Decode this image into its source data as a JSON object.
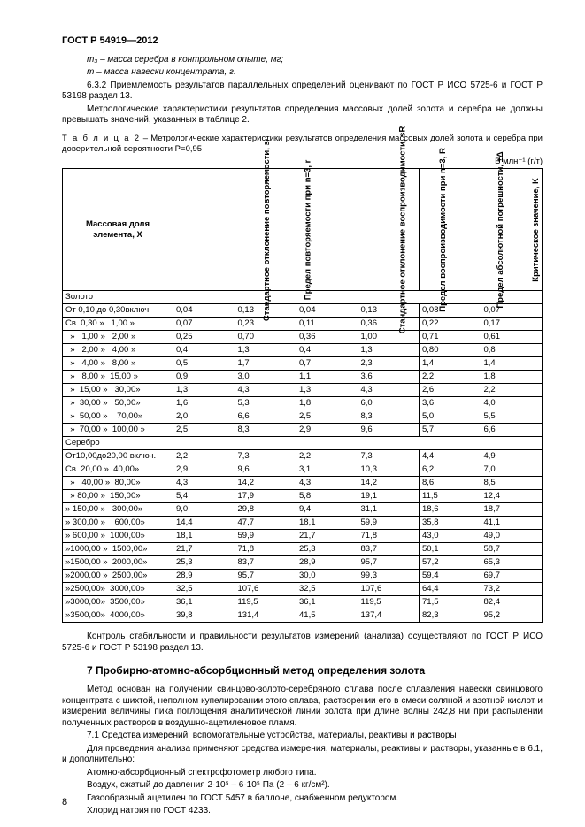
{
  "doc_id": "ГОСТ Р 54919—2012",
  "pre_text": {
    "line1": "m₃ – масса серебра в контрольном опыте, мг;",
    "line2": "m – масса навески концентрата, г.",
    "p1": "6.3.2 Приемлемость результатов параллельных определений оценивают по  ГОСТ Р ИСО 5725-6 и ГОСТ Р 53198 раздел 13.",
    "p2": "Метрологические характеристики результатов определения массовых долей золота и серебра не должны превышать значений, указанных в таблице 2."
  },
  "table": {
    "caption_label": "Т а б л и ц а 2",
    "caption_text": " – Метрологические характеристики результатов определения массовых долей золота и серебра при доверительной вероятности Р=0,95",
    "unit": "В млн⁻¹ (г/т)",
    "headers": {
      "h0": "Массовая доля элемента, X",
      "h1": "Стандартное отклонение повторяемости, sᵣ",
      "h2": "Предел повторяемости при n=3, r",
      "h3": "Стандартное отклонение воспроизводимости, sR",
      "h4": "Предел воспроизводимости при n=3, R",
      "h5": "Предел абсолютной погрешности, ±Δ",
      "h6": "Критическое значение, K"
    },
    "rows": [
      {
        "label": "Золото",
        "span": true
      },
      {
        "label": "От 0,10 до 0,30включ.",
        "v": [
          "0,04",
          "0,13",
          "0,04",
          "0,13",
          "0,08",
          "0,07"
        ]
      },
      {
        "label": "Св. 0,30 »   1,00 »",
        "v": [
          "0,07",
          "0,23",
          "0,11",
          "0,36",
          "0,22",
          "0,17"
        ]
      },
      {
        "label": "  »   1,00 »   2,00 »",
        "v": [
          "0,25",
          "0,70",
          "0,36",
          "1,00",
          "0,71",
          "0,61"
        ]
      },
      {
        "label": "  »   2,00 »   4,00 »",
        "v": [
          "0,4",
          "1,3",
          "0,4",
          "1,3",
          "0,80",
          "0,8"
        ]
      },
      {
        "label": "  »   4,00 »   8,00 »",
        "v": [
          "0,5",
          "1,7",
          "0,7",
          "2,3",
          "1,4",
          "1,4"
        ]
      },
      {
        "label": "  »   8,00 »  15,00 »",
        "v": [
          "0,9",
          "3,0",
          "1,1",
          "3,6",
          "2,2",
          "1,8"
        ]
      },
      {
        "label": "  »  15,00 »   30,00»",
        "v": [
          "1,3",
          "4,3",
          "1,3",
          "4,3",
          "2,6",
          "2,2"
        ]
      },
      {
        "label": "  »  30,00 »   50,00»",
        "v": [
          "1,6",
          "5,3",
          "1,8",
          "6,0",
          "3,6",
          "4,0"
        ]
      },
      {
        "label": "  »  50,00 »    70,00»",
        "v": [
          "2,0",
          "6,6",
          "2,5",
          "8,3",
          "5,0",
          "5,5"
        ]
      },
      {
        "label": "  »  70,00 »  100,00 »",
        "v": [
          "2,5",
          "8,3",
          "2,9",
          "9,6",
          "5,7",
          "6,6"
        ]
      },
      {
        "label": "Серебро",
        "span": true
      },
      {
        "label": "От10,00до20,00 включ.",
        "v": [
          "2,2",
          "7,3",
          "2,2",
          "7,3",
          "4,4",
          "4,9"
        ]
      },
      {
        "label": "Св. 20,00 »  40,00»",
        "v": [
          "2,9",
          "9,6",
          "3,1",
          "10,3",
          "6,2",
          "7,0"
        ]
      },
      {
        "label": "  »   40,00 »  80,00»",
        "v": [
          "4,3",
          "14,2",
          "4,3",
          "14,2",
          "8,6",
          "8,5"
        ]
      },
      {
        "label": "  » 80,00 »  150,00»",
        "v": [
          "5,4",
          "17,9",
          "5,8",
          "19,1",
          "11,5",
          "12,4"
        ]
      },
      {
        "label": "» 150,00 »   300,00»",
        "v": [
          "9,0",
          "29,8",
          "9,4",
          "31,1",
          "18,6",
          "18,7"
        ]
      },
      {
        "label": "» 300,00 »    600,00»",
        "v": [
          "14,4",
          "47,7",
          "18,1",
          "59,9",
          "35,8",
          "41,1"
        ]
      },
      {
        "label": "» 600,00 »  1000,00»",
        "v": [
          "18,1",
          "59,9",
          "21,7",
          "71,8",
          "43,0",
          "49,0"
        ]
      },
      {
        "label": "»1000,00 »  1500,00»",
        "v": [
          "21,7",
          "71,8",
          "25,3",
          "83,7",
          "50,1",
          "58,7"
        ]
      },
      {
        "label": "»1500,00 »  2000,00»",
        "v": [
          "25,3",
          "83,7",
          "28,9",
          "95,7",
          "57,2",
          "65,3"
        ]
      },
      {
        "label": "»2000,00 »  2500,00»",
        "v": [
          "28,9",
          "95,7",
          "30,0",
          "99,3",
          "59,4",
          "69,7"
        ]
      },
      {
        "label": "»2500,00»  3000,00»",
        "v": [
          "32,5",
          "107,6",
          "32,5",
          "107,6",
          "64,4",
          "73,2"
        ]
      },
      {
        "label": "»3000,00»  3500,00»",
        "v": [
          "36,1",
          "119,5",
          "36,1",
          "119,5",
          "71,5",
          "82,4"
        ]
      },
      {
        "label": "»3500,00»  4000,00»",
        "v": [
          "39,8",
          "131,4",
          "41,5",
          "137,4",
          "82,3",
          "95,2"
        ]
      }
    ]
  },
  "post_text": {
    "p1": "Контроль стабильности и правильности результатов измерений (анализа) осуществляют по ГОСТ Р ИСО 5725-6 и ГОСТ Р 53198 раздел 13."
  },
  "section7": {
    "title": "7 Пробирно-атомно-абсорбционный метод определения золота",
    "p1": "Метод основан на получении свинцово-золото-серебряного сплава после сплавления навески свинцового концентрата с шихтой, неполном купелировании этого сплава, растворении его в смеси соляной и азотной кислот и измерении величины пика поглощения аналитической линии золота при длине волны 242,8 нм при распылении полученных растворов в воздушно-ацетиленовое пламя.",
    "p2": "7.1 Средства измерений, вспомогательные устройства, материалы, реактивы и растворы",
    "p3": "Для проведения анализа применяют средства измерения, материалы, реактивы и растворы, указанные в 6.1, и дополнительно:",
    "p4": "Атомно-абсорбционный спектрофотометр любого типа.",
    "p5": "Воздух, сжатый до давления 2·10⁵ – 6·10⁵ Па (2 – 6 кг/см²).",
    "p6": "Газообразный ацетилен по ГОСТ 5457 в баллоне, снабженном редуктором.",
    "p7": "Хлорид натрия по ГОСТ 4233."
  },
  "page_number": "8"
}
